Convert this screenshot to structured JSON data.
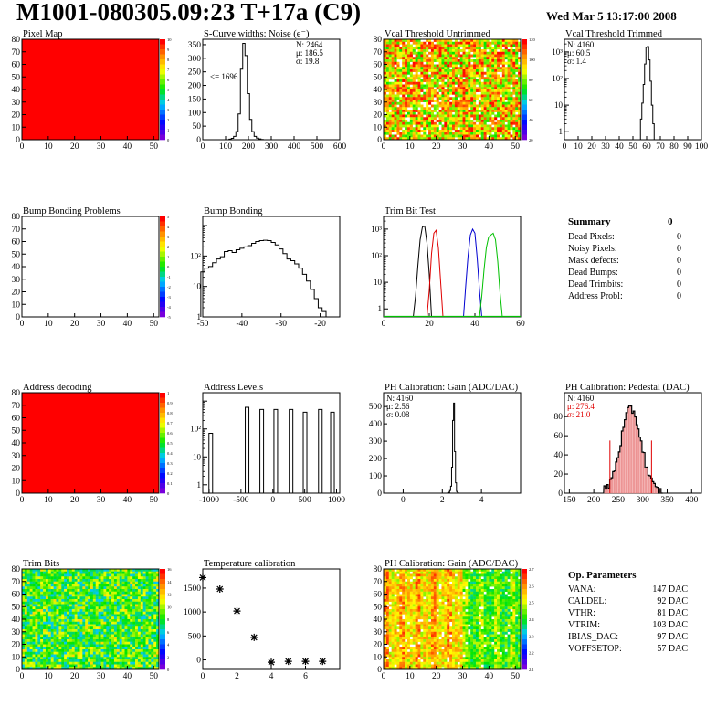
{
  "header": {
    "title": "M1001-080305.09:23 T+17a (C9)",
    "date": "Wed Mar  5 13:17:00 2008"
  },
  "summary": {
    "title": "Summary",
    "total": "0",
    "rows": [
      {
        "label": "Dead Pixels:",
        "value": "0"
      },
      {
        "label": "Noisy Pixels:",
        "value": "0"
      },
      {
        "label": "Mask defects:",
        "value": "0"
      },
      {
        "label": "Dead Bumps:",
        "value": "0"
      },
      {
        "label": "Dead Trimbits:",
        "value": "0"
      },
      {
        "label": "Address Probl:",
        "value": "0"
      }
    ]
  },
  "op_parameters": {
    "title": "Op. Parameters",
    "rows": [
      {
        "label": "VANA:",
        "value": "147 DAC"
      },
      {
        "label": "CALDEL:",
        "value": "92 DAC"
      },
      {
        "label": "VTHR:",
        "value": "81 DAC"
      },
      {
        "label": "VTRIM:",
        "value": "103 DAC"
      },
      {
        "label": "IBIAS_DAC:",
        "value": "97 DAC"
      },
      {
        "label": "VOFFSETOP:",
        "value": "57 DAC"
      }
    ]
  },
  "chart_data": [
    {
      "id": "pixel-map",
      "type": "heatmap",
      "title": "Pixel Map",
      "fill": "uniform-red",
      "xticks": [
        0,
        10,
        20,
        30,
        40,
        50
      ],
      "yticks": [
        0,
        10,
        20,
        30,
        40,
        50,
        60,
        70,
        80
      ],
      "xlim": [
        0,
        52
      ],
      "ylim": [
        0,
        80
      ],
      "palette_ticks": [
        "10",
        "9",
        "8",
        "7",
        "6",
        "5",
        "4",
        "3",
        "2",
        "1",
        "0"
      ]
    },
    {
      "id": "scurve-widths",
      "type": "bar",
      "title": "S-Curve widths: Noise (e⁻)",
      "xticks": [
        0,
        100,
        200,
        300,
        400,
        500,
        600
      ],
      "yticks": [
        0,
        50,
        100,
        150,
        200,
        250,
        300,
        350
      ],
      "xlim": [
        0,
        600
      ],
      "ylim": [
        0,
        370
      ],
      "stats": [
        "N: 2464",
        "μ: 186.5",
        "σ: 19.8"
      ],
      "annotation": "<= 1696",
      "hist": {
        "x": [
          120,
          130,
          140,
          150,
          160,
          170,
          180,
          190,
          200,
          210,
          220,
          230,
          240,
          250,
          260
        ],
        "y": [
          2,
          5,
          12,
          30,
          95,
          260,
          355,
          310,
          170,
          75,
          30,
          12,
          6,
          3,
          1
        ],
        "bin": 10
      }
    },
    {
      "id": "vcal-untrimmed",
      "type": "heatmap",
      "title": "Vcal Threshold Untrimmed",
      "fill": "noise-yellow",
      "xticks": [
        0,
        10,
        20,
        30,
        40,
        50
      ],
      "yticks": [
        0,
        10,
        20,
        30,
        40,
        50,
        60,
        70,
        80
      ],
      "xlim": [
        0,
        52
      ],
      "ylim": [
        0,
        80
      ],
      "palette_ticks": [
        "120",
        "100",
        "80",
        "60",
        "40",
        "20"
      ]
    },
    {
      "id": "vcal-trimmed",
      "type": "bar",
      "title": "Vcal Threshold Trimmed",
      "log": true,
      "xticks": [
        0,
        10,
        20,
        30,
        40,
        50,
        60,
        70,
        80,
        90,
        100
      ],
      "xlim": [
        0,
        100
      ],
      "ylog": [
        0.5,
        3000
      ],
      "ytick_labels": [
        "1",
        "10",
        "10²",
        "10³"
      ],
      "stats": [
        "N: 4160",
        "μ: 60.5",
        "σ: 1.4"
      ],
      "hist": {
        "x": [
          56,
          57,
          58,
          59,
          60,
          61,
          62,
          63,
          64,
          65
        ],
        "y": [
          3,
          12,
          60,
          350,
          1500,
          1600,
          500,
          80,
          10,
          2
        ],
        "bin": 1
      }
    },
    {
      "id": "bump-bonding-problems",
      "type": "heatmap",
      "title": "Bump Bonding Problems",
      "fill": "white",
      "xticks": [
        0,
        10,
        20,
        30,
        40,
        50
      ],
      "yticks": [
        0,
        10,
        20,
        30,
        40,
        50,
        60,
        70,
        80
      ],
      "xlim": [
        0,
        52
      ],
      "ylim": [
        0,
        80
      ],
      "palette_ticks": [
        "5",
        "4",
        "3",
        "2",
        "1",
        "0",
        "-1",
        "-2",
        "-3",
        "-4",
        "-5"
      ]
    },
    {
      "id": "bump-bonding",
      "type": "bar",
      "title": "Bump Bonding",
      "log": true,
      "xticks": [
        -50,
        -40,
        -30,
        -20
      ],
      "xlim": [
        -50,
        -15
      ],
      "ylog": [
        1,
        2000
      ],
      "ytick_labels": [
        "1",
        "10",
        "10²"
      ],
      "hist": {
        "x": [
          -50,
          -49,
          -48,
          -47,
          -46,
          -45,
          -44,
          -43,
          -42,
          -41,
          -40,
          -39,
          -38,
          -37,
          -36,
          -35,
          -34,
          -33,
          -32,
          -31,
          -30,
          -29,
          -28,
          -27,
          -26,
          -25,
          -24,
          -23,
          -22,
          -21,
          -20,
          -19,
          -18
        ],
        "y": [
          30,
          40,
          45,
          60,
          80,
          95,
          140,
          150,
          130,
          160,
          180,
          200,
          220,
          260,
          300,
          320,
          330,
          320,
          280,
          230,
          170,
          120,
          80,
          70,
          55,
          40,
          25,
          15,
          8,
          4,
          2,
          1.5,
          1
        ],
        "bin": 1
      }
    },
    {
      "id": "trim-bit-test",
      "type": "line",
      "title": "Trim Bit Test",
      "log": true,
      "xticks": [
        0,
        20,
        40,
        60
      ],
      "xlim": [
        0,
        60
      ],
      "ylog": [
        0.5,
        3000
      ],
      "ytick_labels": [
        "1",
        "10",
        "10²",
        "10³"
      ],
      "series": [
        {
          "color": "#000000",
          "x": [
            13,
            14,
            15,
            16,
            17,
            18,
            19,
            20,
            21
          ],
          "y": [
            0.5,
            3,
            40,
            400,
            1200,
            1300,
            300,
            20,
            0.5
          ]
        },
        {
          "color": "#e00000",
          "x": [
            19,
            20,
            21,
            22,
            23,
            24,
            25,
            26
          ],
          "y": [
            0.5,
            5,
            120,
            700,
            900,
            200,
            10,
            0.5
          ]
        },
        {
          "color": "#0000d0",
          "x": [
            35,
            36,
            37,
            38,
            39,
            40,
            41,
            42,
            43
          ],
          "y": [
            0.5,
            8,
            100,
            600,
            1000,
            700,
            80,
            5,
            0.5
          ]
        },
        {
          "color": "#00c000",
          "x": [
            42,
            43,
            44,
            45,
            46,
            47,
            48,
            49,
            50,
            51,
            52
          ],
          "y": [
            0.5,
            3,
            30,
            200,
            500,
            600,
            700,
            400,
            60,
            4,
            0.5
          ]
        }
      ]
    },
    {
      "id": "address-decoding",
      "type": "heatmap",
      "title": "Address decoding",
      "fill": "uniform-red",
      "xticks": [
        0,
        10,
        20,
        30,
        40,
        50
      ],
      "yticks": [
        0,
        10,
        20,
        30,
        40,
        50,
        60,
        70,
        80
      ],
      "xlim": [
        0,
        52
      ],
      "ylim": [
        0,
        80
      ],
      "palette_ticks": [
        "1",
        "0.9",
        "0.8",
        "0.7",
        "0.6",
        "0.5",
        "0.4",
        "0.3",
        "0.2",
        "0.1",
        "0"
      ]
    },
    {
      "id": "address-levels",
      "type": "bar",
      "title": "Address Levels",
      "log": true,
      "xticks": [
        -1000,
        -500,
        0,
        500,
        1000
      ],
      "xlim": [
        -1100,
        1050
      ],
      "ylog": [
        0.5,
        2000
      ],
      "ytick_labels": [
        "1",
        "10",
        "10²"
      ],
      "peaks": [
        -960,
        -390,
        -160,
        60,
        300,
        520,
        760,
        950
      ],
      "peak_heights": [
        70,
        600,
        500,
        500,
        500,
        400,
        500,
        400
      ]
    },
    {
      "id": "ph-gain",
      "type": "bar",
      "title": "PH Calibration: Gain (ADC/DAC)",
      "xticks": [
        0,
        2,
        4
      ],
      "yticks": [
        0,
        100,
        200,
        300,
        400,
        500
      ],
      "xlim": [
        -1,
        6
      ],
      "ylim": [
        0,
        580
      ],
      "stats": [
        "N: 4160",
        "μ: 2.56",
        "σ: 0.08"
      ],
      "hist": {
        "x": [
          2.3,
          2.35,
          2.4,
          2.45,
          2.5,
          2.55,
          2.6,
          2.65,
          2.7,
          2.75,
          2.8
        ],
        "y": [
          2,
          5,
          15,
          40,
          150,
          420,
          520,
          240,
          60,
          10,
          2
        ],
        "bin": 0.05
      }
    },
    {
      "id": "ph-pedestal",
      "type": "bar",
      "title": "PH Calibration: Pedestal (DAC)",
      "xticks": [
        150,
        200,
        250,
        300,
        350,
        400
      ],
      "yticks": [
        0,
        20,
        40,
        60,
        80
      ],
      "xlim": [
        140,
        420
      ],
      "ylim": [
        0,
        105
      ],
      "stats": [
        "N: 4160",
        "μ: 276.4",
        "σ: 21.0"
      ],
      "stats_color": [
        "#000",
        "#e00000",
        "#e00000"
      ],
      "markers": [
        233,
        318
      ]
    },
    {
      "id": "trim-bits",
      "type": "heatmap",
      "title": "Trim Bits",
      "fill": "noise-green",
      "xticks": [
        0,
        10,
        20,
        30,
        40,
        50
      ],
      "yticks": [
        0,
        10,
        20,
        30,
        40,
        50,
        60,
        70,
        80
      ],
      "xlim": [
        0,
        52
      ],
      "ylim": [
        0,
        80
      ],
      "palette_ticks": [
        "16",
        "14",
        "12",
        "10",
        "8",
        "6",
        "4",
        "2",
        "0"
      ]
    },
    {
      "id": "temperature-calibration",
      "type": "scatter",
      "title": "Temperature calibration",
      "xticks": [
        0,
        2,
        4,
        6
      ],
      "yticks": [
        0,
        500,
        1000,
        1500
      ],
      "xlim": [
        0,
        8
      ],
      "ylim": [
        -200,
        1900
      ],
      "x": [
        0,
        1,
        2,
        3,
        4,
        5,
        6,
        7
      ],
      "y": [
        1720,
        1480,
        1020,
        470,
        -50,
        -30,
        -30,
        -30
      ]
    },
    {
      "id": "ph-gain-map",
      "type": "heatmap",
      "title": "PH Calibration: Gain (ADC/DAC)",
      "fill": "noise-gain",
      "xticks": [
        0,
        10,
        20,
        30,
        40,
        50
      ],
      "yticks": [
        0,
        10,
        20,
        30,
        40,
        50,
        60,
        70,
        80
      ],
      "xlim": [
        0,
        52
      ],
      "ylim": [
        0,
        80
      ],
      "palette_ticks": [
        "2.7",
        "2.6",
        "2.5",
        "2.4",
        "2.3",
        "2.2",
        "2.1"
      ]
    }
  ]
}
